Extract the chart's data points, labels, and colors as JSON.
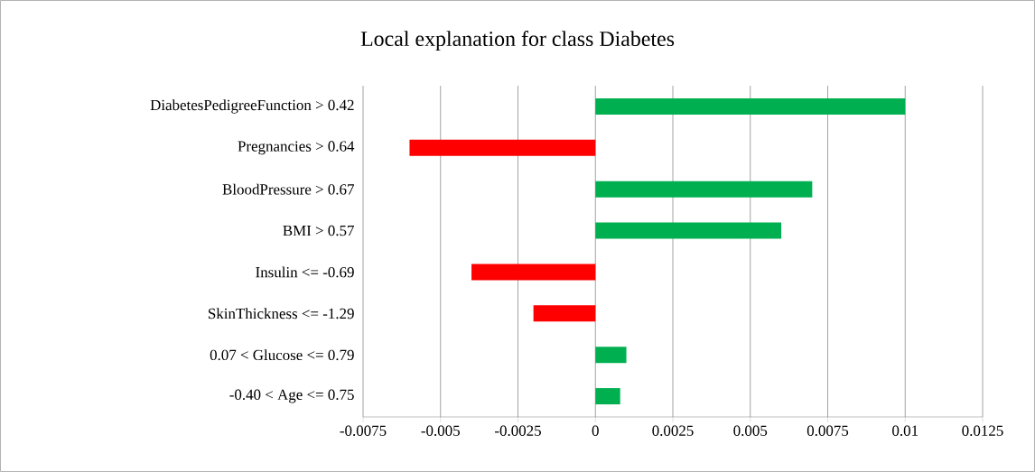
{
  "chart_data": {
    "type": "bar",
    "orientation": "horizontal",
    "title": "Local explanation for class Diabetes",
    "categories": [
      "DiabetesPedigreeFunction > 0.42",
      "Pregnancies > 0.64",
      "BloodPressure > 0.67",
      "BMI > 0.57",
      "Insulin <= -0.69",
      "SkinThickness <= -1.29",
      "0.07 < Glucose <= 0.79",
      "-0.40 < Age <= 0.75"
    ],
    "values": [
      0.01,
      -0.006,
      0.007,
      0.006,
      -0.004,
      -0.002,
      0.001,
      0.0008
    ],
    "colors": [
      "#00b050",
      "#ff0000",
      "#00b050",
      "#00b050",
      "#ff0000",
      "#ff0000",
      "#00b050",
      "#00b050"
    ],
    "xlim": [
      -0.0075,
      0.0125
    ],
    "xticks": [
      -0.0075,
      -0.005,
      -0.0025,
      0,
      0.0025,
      0.005,
      0.0075,
      0.01,
      0.0125
    ],
    "grid": "x"
  }
}
